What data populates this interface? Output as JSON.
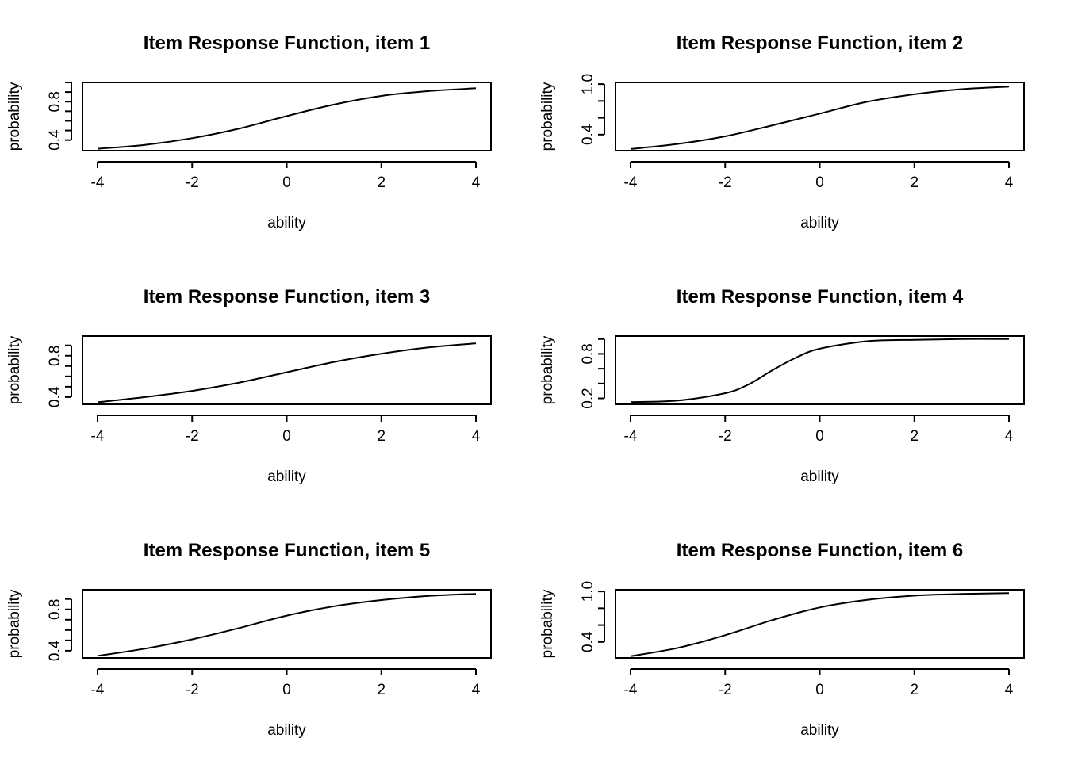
{
  "chart_data": [
    {
      "type": "line",
      "title": "Item Response Function, item 1",
      "xlabel": "ability",
      "ylabel": "probability",
      "xlim": [
        -4,
        4
      ],
      "ylim": [
        0.29,
        1.0
      ],
      "xticks": [
        -4,
        -2,
        0,
        2,
        4
      ],
      "yticks": [
        0.4,
        0.5,
        0.6,
        0.7,
        0.8,
        0.9,
        1.0
      ],
      "ytick_labels": [
        "0.4",
        "",
        "",
        "",
        "0.8",
        "",
        ""
      ],
      "grid": false,
      "series": [
        {
          "x": [
            -4,
            -3,
            -2,
            -1,
            0,
            1,
            2,
            3,
            4
          ],
          "values": [
            0.31,
            0.35,
            0.42,
            0.52,
            0.65,
            0.77,
            0.86,
            0.91,
            0.94
          ]
        }
      ]
    },
    {
      "type": "line",
      "title": "Item Response Function, item 2",
      "xlabel": "ability",
      "ylabel": "probability",
      "xlim": [
        -4,
        4
      ],
      "ylim": [
        0.21,
        1.02
      ],
      "xticks": [
        -4,
        -2,
        0,
        2,
        4
      ],
      "yticks": [
        0.4,
        0.6,
        0.8,
        1.0
      ],
      "ytick_labels": [
        "0.4",
        "",
        "",
        "1.0"
      ],
      "grid": false,
      "series": [
        {
          "x": [
            -4,
            -3,
            -2,
            -1,
            0,
            1,
            2,
            3,
            4
          ],
          "values": [
            0.23,
            0.29,
            0.38,
            0.51,
            0.65,
            0.79,
            0.88,
            0.94,
            0.97
          ]
        }
      ]
    },
    {
      "type": "line",
      "title": "Item Response Function, item 3",
      "xlabel": "ability",
      "ylabel": "probability",
      "xlim": [
        -4,
        4
      ],
      "ylim": [
        0.33,
        0.99
      ],
      "xticks": [
        -4,
        -2,
        0,
        2,
        4
      ],
      "yticks": [
        0.4,
        0.5,
        0.6,
        0.7,
        0.8,
        0.9
      ],
      "ytick_labels": [
        "0.4",
        "",
        "",
        "",
        "0.8",
        ""
      ],
      "grid": false,
      "series": [
        {
          "x": [
            -4,
            -3,
            -2,
            -1,
            0,
            1,
            2,
            3,
            4
          ],
          "values": [
            0.35,
            0.4,
            0.46,
            0.54,
            0.64,
            0.74,
            0.82,
            0.88,
            0.92
          ]
        }
      ]
    },
    {
      "type": "line",
      "title": "Item Response Function, item 4",
      "xlabel": "ability",
      "ylabel": "probability",
      "xlim": [
        -4,
        4
      ],
      "ylim": [
        0.12,
        1.04
      ],
      "xticks": [
        -4,
        -2,
        0,
        2,
        4
      ],
      "yticks": [
        0.2,
        0.4,
        0.6,
        0.8,
        1.0
      ],
      "ytick_labels": [
        "0.2",
        "",
        "",
        "0.8",
        ""
      ],
      "grid": false,
      "series": [
        {
          "x": [
            -4,
            -3,
            -2,
            -1.5,
            -1,
            -0.5,
            0,
            1,
            2,
            3,
            4
          ],
          "values": [
            0.15,
            0.17,
            0.27,
            0.39,
            0.58,
            0.75,
            0.87,
            0.97,
            0.99,
            1.0,
            1.0
          ]
        }
      ]
    },
    {
      "type": "line",
      "title": "Item Response Function, item 5",
      "xlabel": "ability",
      "ylabel": "probability",
      "xlim": [
        -4,
        4
      ],
      "ylim": [
        0.33,
        0.99
      ],
      "xticks": [
        -4,
        -2,
        0,
        2,
        4
      ],
      "yticks": [
        0.4,
        0.5,
        0.6,
        0.7,
        0.8,
        0.9
      ],
      "ytick_labels": [
        "0.4",
        "",
        "",
        "",
        "0.8",
        ""
      ],
      "grid": false,
      "series": [
        {
          "x": [
            -4,
            -3,
            -2,
            -1,
            0,
            1,
            2,
            3,
            4
          ],
          "values": [
            0.35,
            0.42,
            0.51,
            0.62,
            0.74,
            0.83,
            0.89,
            0.93,
            0.95
          ]
        }
      ]
    },
    {
      "type": "line",
      "title": "Item Response Function, item 6",
      "xlabel": "ability",
      "ylabel": "probability",
      "xlim": [
        -4,
        4
      ],
      "ylim": [
        0.21,
        1.02
      ],
      "xticks": [
        -4,
        -2,
        0,
        2,
        4
      ],
      "yticks": [
        0.4,
        0.6,
        0.8,
        1.0
      ],
      "ytick_labels": [
        "0.4",
        "",
        "",
        "1.0"
      ],
      "grid": false,
      "series": [
        {
          "x": [
            -4,
            -3,
            -2,
            -1,
            0,
            1,
            2,
            3,
            4
          ],
          "values": [
            0.23,
            0.33,
            0.48,
            0.66,
            0.81,
            0.9,
            0.95,
            0.97,
            0.98
          ]
        }
      ]
    }
  ]
}
